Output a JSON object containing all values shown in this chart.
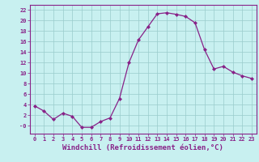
{
  "x": [
    0,
    1,
    2,
    3,
    4,
    5,
    6,
    7,
    8,
    9,
    10,
    11,
    12,
    13,
    14,
    15,
    16,
    17,
    18,
    19,
    20,
    21,
    22,
    23
  ],
  "y": [
    3.8,
    2.8,
    1.2,
    2.4,
    1.8,
    -0.3,
    -0.3,
    0.8,
    1.5,
    5.2,
    12.0,
    16.3,
    18.8,
    21.3,
    21.5,
    21.2,
    20.8,
    19.6,
    14.5,
    10.8,
    11.3,
    10.2,
    9.5,
    9.0
  ],
  "line_color": "#882288",
  "marker": "D",
  "markersize": 2.0,
  "linewidth": 0.9,
  "xlabel": "Windchill (Refroidissement éolien,°C)",
  "xlabel_fontsize": 6.5,
  "ylim": [
    -1.5,
    23
  ],
  "xlim": [
    -0.5,
    23.5
  ],
  "yticks": [
    0,
    2,
    4,
    6,
    8,
    10,
    12,
    14,
    16,
    18,
    20,
    22
  ],
  "ytick_labels": [
    "-0",
    "2",
    "4",
    "6",
    "8",
    "10",
    "12",
    "14",
    "16",
    "18",
    "20",
    "22"
  ],
  "xticks": [
    0,
    1,
    2,
    3,
    4,
    5,
    6,
    7,
    8,
    9,
    10,
    11,
    12,
    13,
    14,
    15,
    16,
    17,
    18,
    19,
    20,
    21,
    22,
    23
  ],
  "bg_color": "#c8f0f0",
  "grid_color": "#99cccc",
  "tick_fontsize": 5.0,
  "tick_color": "#882288",
  "spine_color": "#882288"
}
